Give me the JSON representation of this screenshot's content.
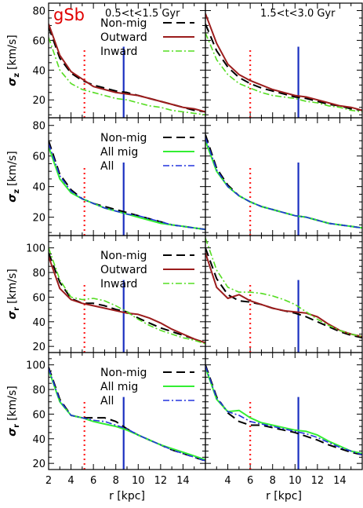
{
  "chart_data": {
    "type": "line",
    "galaxy_label": "gSb",
    "xlabel": "r [kpc]",
    "xlim": [
      2,
      16
    ],
    "x_ticks": [
      2,
      4,
      6,
      8,
      10,
      12,
      14
    ],
    "columns": [
      {
        "title": "0.5<t<1.5 Gyr",
        "vline_red": 5.2,
        "vline_blue": 8.7
      },
      {
        "title": "1.5<t<3.0 Gyr",
        "vline_red": 6.0,
        "vline_blue": 10.3
      }
    ],
    "colors": {
      "nonmig": "#000000",
      "outward": "#9b1c1c",
      "inward": "#55dd22",
      "allmig": "#33ee33",
      "all": "#2233dd",
      "red_vline": "#ff2020",
      "blue_vline": "#1a2fc0"
    },
    "rows": [
      {
        "ylabel_main": "σ",
        "ylabel_sub": "z",
        "ylabel_unit": "[km/s]",
        "ylim": [
          8,
          85
        ],
        "yticks": [
          20,
          40,
          60,
          80
        ],
        "legend": [
          "Non-mig",
          "Outward",
          "Inward"
        ],
        "panels": [
          {
            "x": [
              2,
              3,
              4,
              5,
              6,
              7,
              8,
              9,
              10,
              11,
              12,
              13,
              14,
              15,
              16
            ],
            "series": {
              "nonmig": [
                69,
                48,
                38,
                33,
                30,
                28,
                26,
                25,
                23,
                21,
                19,
                17,
                15,
                13,
                12
              ],
              "outward": [
                71,
                50,
                39,
                34,
                29,
                27,
                25,
                24,
                23,
                21,
                19,
                17,
                15,
                14,
                12
              ],
              "inward": [
                62,
                40,
                31,
                27,
                25,
                23,
                21,
                20,
                18,
                16,
                15,
                13,
                12,
                11,
                10
              ]
            }
          },
          {
            "x": [
              2,
              3,
              4,
              5,
              6,
              7,
              8,
              9,
              10,
              11,
              12,
              13,
              14,
              15,
              16
            ],
            "series": {
              "nonmig": [
                71,
                53,
                42,
                35,
                31,
                28,
                26,
                24,
                22,
                21,
                19,
                17,
                16,
                14,
                13
              ],
              "outward": [
                78,
                58,
                44,
                37,
                33,
                30,
                27,
                25,
                23,
                22,
                20,
                18,
                16,
                15,
                13
              ],
              "inward": [
                65,
                47,
                37,
                31,
                28,
                25,
                23,
                22,
                21,
                19,
                18,
                16,
                15,
                13,
                12
              ]
            }
          }
        ]
      },
      {
        "ylabel_main": "σ",
        "ylabel_sub": "z",
        "ylabel_unit": "[km/s]",
        "ylim": [
          8,
          85
        ],
        "yticks": [
          20,
          40,
          60,
          80
        ],
        "legend": [
          "Non-mig",
          "All mig",
          "All"
        ],
        "panels": [
          {
            "x": [
              2,
              3,
              4,
              5,
              6,
              7,
              8,
              9,
              10,
              11,
              12,
              13,
              14,
              15,
              16
            ],
            "series": {
              "nonmig": [
                70,
                48,
                38,
                32,
                29,
                27,
                25,
                23,
                21,
                19,
                17,
                15,
                14,
                13,
                12
              ],
              "allmig": [
                66,
                45,
                36,
                32,
                29,
                26,
                24,
                22,
                20,
                18,
                16,
                15,
                14,
                13,
                12
              ],
              "all": [
                68,
                47,
                37,
                32,
                29,
                26,
                24,
                22,
                21,
                19,
                17,
                15,
                14,
                13,
                12
              ]
            }
          },
          {
            "x": [
              2,
              3,
              4,
              5,
              6,
              7,
              8,
              9,
              10,
              11,
              12,
              13,
              14,
              15,
              16
            ],
            "series": {
              "nonmig": [
                74,
                52,
                41,
                34,
                30,
                27,
                25,
                23,
                21,
                20,
                18,
                16,
                15,
                14,
                13
              ],
              "allmig": [
                70,
                50,
                40,
                34,
                30,
                27,
                25,
                23,
                21,
                20,
                18,
                16,
                15,
                14,
                13
              ],
              "all": [
                72,
                51,
                40,
                34,
                30,
                27,
                25,
                23,
                21,
                20,
                18,
                16,
                15,
                14,
                13
              ]
            }
          }
        ]
      },
      {
        "ylabel_main": "σ",
        "ylabel_sub": "r",
        "ylabel_unit": "[km/s]",
        "ylim": [
          15,
          110
        ],
        "yticks": [
          20,
          40,
          60,
          80,
          100
        ],
        "legend": [
          "Non-mig",
          "Outward",
          "Inward"
        ],
        "panels": [
          {
            "x": [
              2,
              3,
              4,
              5,
              6,
              7,
              8,
              9,
              10,
              11,
              12,
              13,
              14,
              15,
              16
            ],
            "series": {
              "nonmig": [
                96,
                72,
                59,
                55,
                55,
                53,
                50,
                48,
                43,
                39,
                35,
                32,
                29,
                26,
                23
              ],
              "outward": [
                93,
                67,
                58,
                55,
                53,
                51,
                49,
                47,
                46,
                43,
                39,
                34,
                30,
                26,
                23
              ],
              "inward": [
                100,
                74,
                60,
                58,
                59,
                57,
                53,
                48,
                42,
                37,
                33,
                30,
                27,
                25,
                22
              ]
            }
          },
          {
            "x": [
              2,
              3,
              4,
              5,
              6,
              7,
              8,
              9,
              10,
              11,
              12,
              13,
              14,
              15,
              16
            ],
            "series": {
              "nonmig": [
                100,
                75,
                62,
                57,
                56,
                54,
                51,
                49,
                47,
                44,
                40,
                36,
                32,
                29,
                27
              ],
              "outward": [
                96,
                68,
                59,
                62,
                57,
                54,
                51,
                49,
                48,
                47,
                44,
                38,
                33,
                30,
                28
              ],
              "inward": [
                108,
                82,
                68,
                64,
                64,
                63,
                61,
                58,
                54,
                48,
                42,
                37,
                33,
                30,
                28
              ]
            }
          }
        ]
      },
      {
        "ylabel_main": "σ",
        "ylabel_sub": "r",
        "ylabel_unit": "[km/s]",
        "ylim": [
          15,
          110
        ],
        "yticks": [
          20,
          40,
          60,
          80,
          100
        ],
        "legend": [
          "Non-mig",
          "All mig",
          "All"
        ],
        "panels": [
          {
            "x": [
              2,
              3,
              4,
              5,
              6,
              7,
              8,
              9,
              10,
              11,
              12,
              13,
              14,
              15,
              16
            ],
            "series": {
              "nonmig": [
                98,
                72,
                59,
                57,
                57,
                57,
                54,
                48,
                43,
                39,
                35,
                31,
                28,
                25,
                22
              ],
              "allmig": [
                96,
                70,
                59,
                57,
                54,
                52,
                50,
                47,
                43,
                39,
                35,
                32,
                29,
                26,
                23
              ],
              "all": [
                97,
                71,
                59,
                57,
                55,
                54,
                51,
                48,
                43,
                39,
                35,
                31,
                28,
                25,
                22
              ]
            }
          },
          {
            "x": [
              2,
              3,
              4,
              5,
              6,
              7,
              8,
              9,
              10,
              11,
              12,
              13,
              14,
              15,
              16
            ],
            "series": {
              "nonmig": [
                100,
                74,
                61,
                54,
                51,
                51,
                49,
                47,
                45,
                42,
                39,
                35,
                32,
                29,
                27
              ],
              "allmig": [
                98,
                72,
                62,
                63,
                57,
                53,
                51,
                49,
                47,
                46,
                43,
                38,
                34,
                30,
                28
              ],
              "all": [
                99,
                73,
                62,
                59,
                54,
                52,
                50,
                48,
                46,
                44,
                41,
                37,
                33,
                30,
                27
              ]
            }
          }
        ]
      }
    ]
  }
}
